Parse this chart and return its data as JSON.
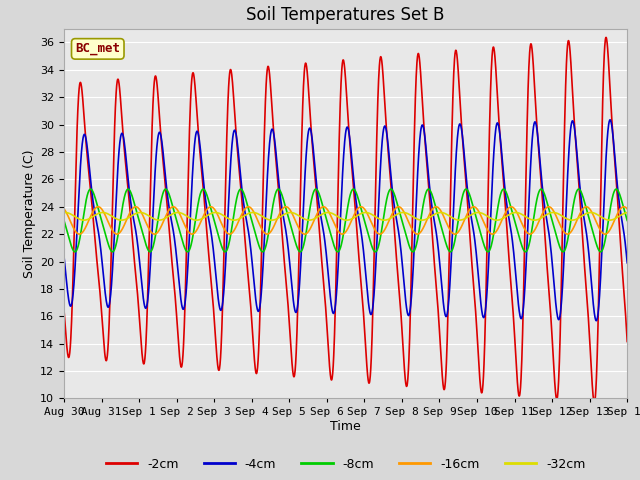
{
  "title": "Soil Temperatures Set B",
  "xlabel": "Time",
  "ylabel": "Soil Temperature (C)",
  "ylim": [
    10,
    37
  ],
  "yticks": [
    10,
    12,
    14,
    16,
    18,
    20,
    22,
    24,
    26,
    28,
    30,
    32,
    34,
    36
  ],
  "mean_temp": 23.0,
  "colors": [
    "#dd0000",
    "#0000cc",
    "#00cc00",
    "#ff9900",
    "#dddd00"
  ],
  "labels": [
    "-2cm",
    "-4cm",
    "-8cm",
    "-16cm",
    "-32cm"
  ],
  "annotation_text": "BC_met",
  "background_color": "#e8e8e8",
  "title_fontsize": 12,
  "legend_fontsize": 9,
  "axis_label_fontsize": 9,
  "tick_label_fontsize": 8
}
